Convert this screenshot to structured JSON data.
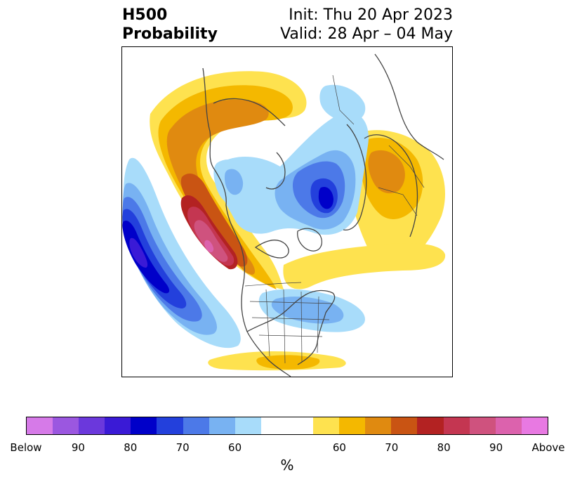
{
  "title": {
    "left_line1": "H500",
    "left_line2": "Probability",
    "right_line1": "Init: Thu 20 Apr 2023",
    "right_line2": "Valid: 28 Apr – 04 May"
  },
  "colorbar": {
    "unit": "%",
    "colors": [
      "#d67ae8",
      "#9b57e0",
      "#6b38dc",
      "#3a1ad6",
      "#0000c9",
      "#2340dc",
      "#4c79e8",
      "#78b2f2",
      "#a8dcfa",
      "#ffffff",
      "#ffffff",
      "#fee24f",
      "#f4b800",
      "#e08a10",
      "#c95413",
      "#b32222",
      "#c43651",
      "#cf527e",
      "#dc62ad",
      "#e879e2"
    ],
    "labels": [
      "Below",
      "90",
      "80",
      "70",
      "60",
      "60",
      "70",
      "80",
      "90",
      "Above"
    ]
  },
  "map": {
    "colors": {
      "above_yellow": "#fee24f",
      "above_gold": "#f4b800",
      "above_orange": "#e08a10",
      "above_darkorange": "#c95413",
      "above_red": "#b32222",
      "above_crimson": "#c43651",
      "above_rose": "#cf527e",
      "above_pink": "#dc62ad",
      "below_light": "#a8dcfa",
      "below_sky": "#78b2f2",
      "below_mid": "#4c79e8",
      "below_blue": "#2340dc",
      "below_dark": "#0000c9",
      "below_navy": "#3a1ad6",
      "coast": "#444444"
    }
  }
}
